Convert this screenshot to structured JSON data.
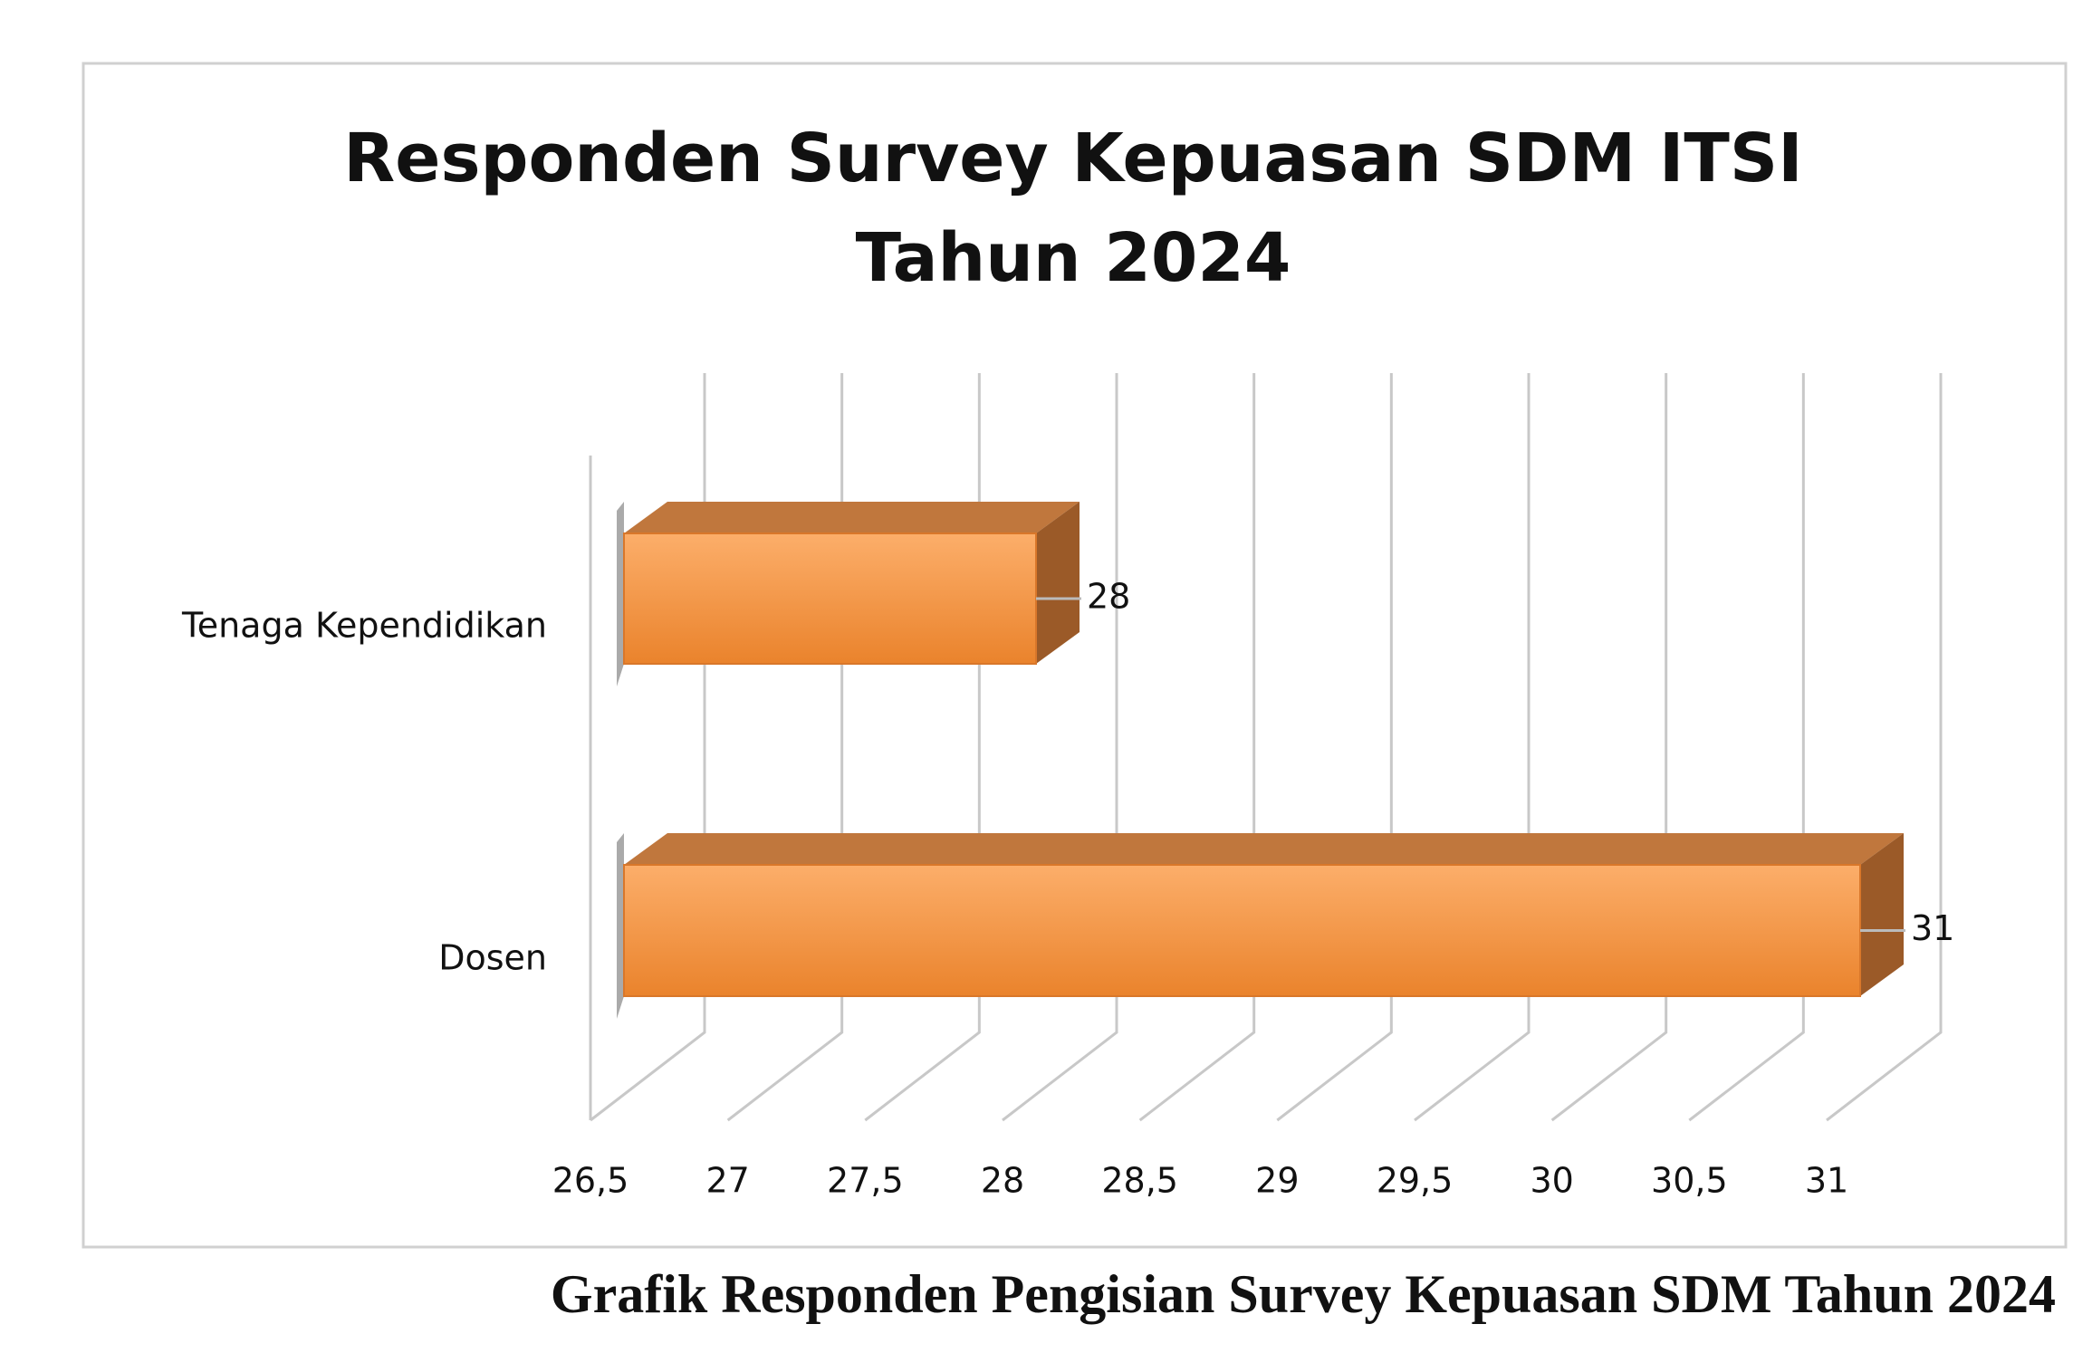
{
  "chart_data": {
    "type": "bar3d",
    "orientation": "horizontal",
    "title": "Responden Survey Kepuasan SDM ITSI Tahun 2024",
    "caption": "Grafik Responden Pengisian Survey Kepuasan SDM Tahun 2024",
    "categories": [
      "Tenaga Kependidikan",
      "Dosen"
    ],
    "values": [
      28,
      31
    ],
    "color": "#f59a48",
    "xlim": [
      26.5,
      31
    ],
    "xticks": [
      {
        "value": 26.5,
        "label": "26,5"
      },
      27,
      {
        "value": 27.5,
        "label": "27,5"
      },
      28,
      {
        "value": 28.5,
        "label": "28,5"
      },
      29,
      {
        "value": 29.5,
        "label": "29,5"
      },
      30,
      {
        "value": 30.5,
        "label": "30,5"
      },
      31
    ],
    "grid": true
  }
}
